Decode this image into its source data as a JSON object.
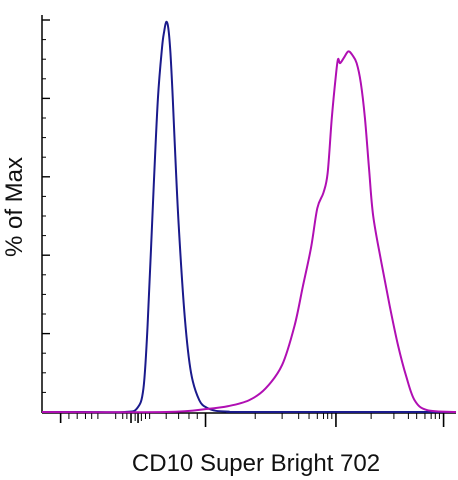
{
  "chart_data": {
    "type": "line",
    "title": "",
    "xlabel": "CD10 Super Bright 702",
    "ylabel": "% of Max",
    "x_scale": "biexponential",
    "x_tick_labels": [],
    "y_tick_labels": [],
    "ylim": [
      0,
      100
    ],
    "grid": false,
    "legend": "none",
    "series": [
      {
        "color": "#1a1a8c",
        "x": [
          0,
          0.1,
          0.2,
          0.23,
          0.245,
          0.255,
          0.27,
          0.28,
          0.29,
          0.295,
          0.3,
          0.305,
          0.31,
          0.315,
          0.32,
          0.33,
          0.345,
          0.36,
          0.38,
          0.4,
          0.42,
          0.45,
          0.5,
          1.0
        ],
        "values": [
          0,
          0,
          0,
          1,
          6,
          22,
          58,
          80,
          93,
          97,
          99.5,
          98,
          92,
          82,
          70,
          48,
          24,
          10,
          3,
          1,
          0.3,
          0.1,
          0,
          0
        ]
      },
      {
        "color": "#b00fb3",
        "x": [
          0,
          0.3,
          0.4,
          0.45,
          0.5,
          0.54,
          0.58,
          0.61,
          0.63,
          0.65,
          0.665,
          0.68,
          0.69,
          0.7,
          0.71,
          0.715,
          0.72,
          0.73,
          0.74,
          0.75,
          0.76,
          0.77,
          0.78,
          0.79,
          0.8,
          0.82,
          0.84,
          0.86,
          0.88,
          0.9,
          0.93,
          1.0
        ],
        "values": [
          0,
          0,
          0.8,
          1.5,
          3,
          6,
          12,
          22,
          32,
          42,
          52,
          56,
          61,
          75,
          86,
          90,
          89,
          90.5,
          92,
          91,
          89,
          84,
          75,
          62,
          50,
          38,
          27,
          17,
          9,
          3,
          0.5,
          0
        ]
      }
    ]
  }
}
